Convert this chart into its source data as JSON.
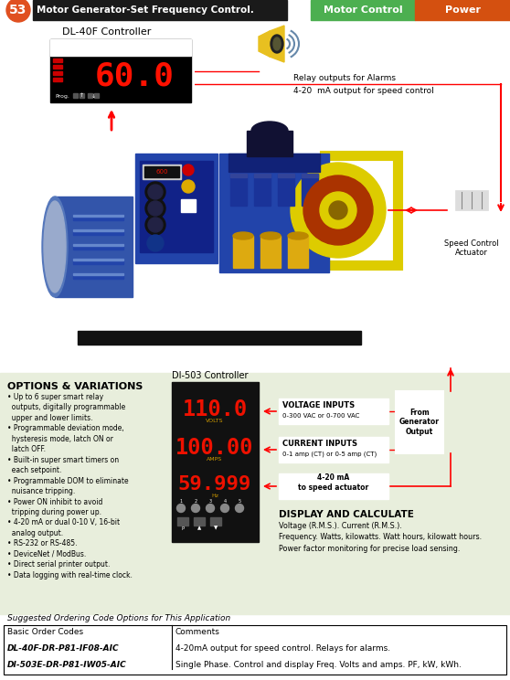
{
  "title": "Motor Generator-Set Frequency Control.",
  "number": "53",
  "number_bg": "#e05020",
  "title_bg": "#1a1a1a",
  "title_color": "#ffffff",
  "tag_motor_control": "Motor Control",
  "tag_motor_bg": "#4caf50",
  "tag_power": "Power",
  "tag_power_bg": "#d45010",
  "tag_text_color": "#ffffff",
  "dl40f_label": "DL-40F Controller",
  "dl40f_display": "60.0",
  "relay_label": "Relay outputs for Alarms",
  "mA_label": "4-20  mA output for speed control",
  "speed_actuator_label": "Speed Control\nActuator",
  "options_bg": "#e8eedc",
  "options_title": "OPTIONS & VARIATIONS",
  "options_items": [
    "• Up to 6 super smart relay\n  outputs, digitally programmable\n  upper and lower limits.",
    "• Programmable deviation mode,\n  hysteresis mode, latch ON or\n  latch OFF.",
    "• Built-in super smart timers on\n  each setpoint.",
    "• Programmable DOM to eliminate\n  nuisance tripping.",
    "• Power ON inhibit to avoid\n  tripping during power up.",
    "• 4-20 mA or dual 0-10 V, 16-bit\n  analog output.",
    "• RS-232 or RS-485.",
    "• DeviceNet / ModBus.",
    "• Direct serial printer output.",
    "• Data logging with real-time clock."
  ],
  "di503_label": "DI-503 Controller",
  "di503_volts": "110.0",
  "di503_amps": "100.00",
  "di503_hz": "59.999",
  "volts_label": "VOLTS",
  "amps_label": "AMPS",
  "hz_label": "Hz",
  "voltage_inputs_label": "VOLTAGE INPUTS",
  "voltage_inputs_sub": "0-300 VAC or 0-700 VAC",
  "current_inputs_label": "CURRENT INPUTS",
  "current_inputs_sub": "0-1 amp (CT) or 0-5 amp (CT)",
  "mA_actuator_label": "4-20 mA\nto speed actuator",
  "from_gen_label": "From\nGenerator\nOutput",
  "display_calc_title": "DISPLAY AND CALCULATE",
  "display_calc_text": "Voltage (R.M.S.). Current (R.M.S.).\nFrequency. Watts, kilowatts. Watt hours, kilowatt hours.\nPower factor monitoring for precise load sensing.",
  "table_title": "Suggested Ordering Code Options for This Application",
  "table_col1": "Basic Order Codes",
  "table_col2": "Comments",
  "table_row1_code": "DL-40F-DR-P81-IF08-AIC",
  "table_row1_comment": "4-20mA output for speed control. Relays for alarms.",
  "table_row2_code": "DI-503E-DR-P81-IW05-AIC",
  "table_row2_comment": "Single Phase. Control and display Freq. Volts and amps. PF, kW, kWh.",
  "white": "#ffffff",
  "black": "#000000",
  "red": "#cc0000",
  "led_red": "#ee1100",
  "dark_bg": "#111111"
}
